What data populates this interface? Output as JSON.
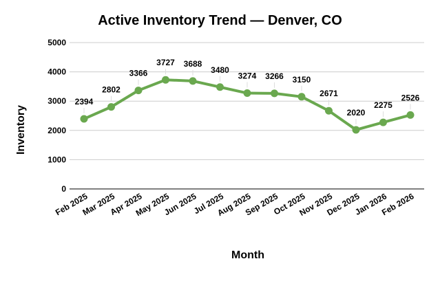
{
  "chart_data": {
    "type": "line",
    "title": "Active Inventory Trend — Denver, CO",
    "xlabel": "Month",
    "ylabel": "Inventory",
    "categories": [
      "Feb 2025",
      "Mar 2025",
      "Apr 2025",
      "May 2025",
      "Jun 2025",
      "Jul 2025",
      "Aug 2025",
      "Sep 2025",
      "Oct 2025",
      "Nov 2025",
      "Dec 2025",
      "Jan 2026",
      "Feb 2026"
    ],
    "values": [
      2394,
      2802,
      3366,
      3727,
      3688,
      3480,
      3274,
      3266,
      3150,
      2671,
      2020,
      2275,
      2526
    ],
    "ylim": [
      0,
      5000
    ],
    "yticks": [
      0,
      1000,
      2000,
      3000,
      4000,
      5000
    ],
    "grid": true,
    "legend": "none",
    "data_labels": true,
    "color": "#6aa84f"
  }
}
